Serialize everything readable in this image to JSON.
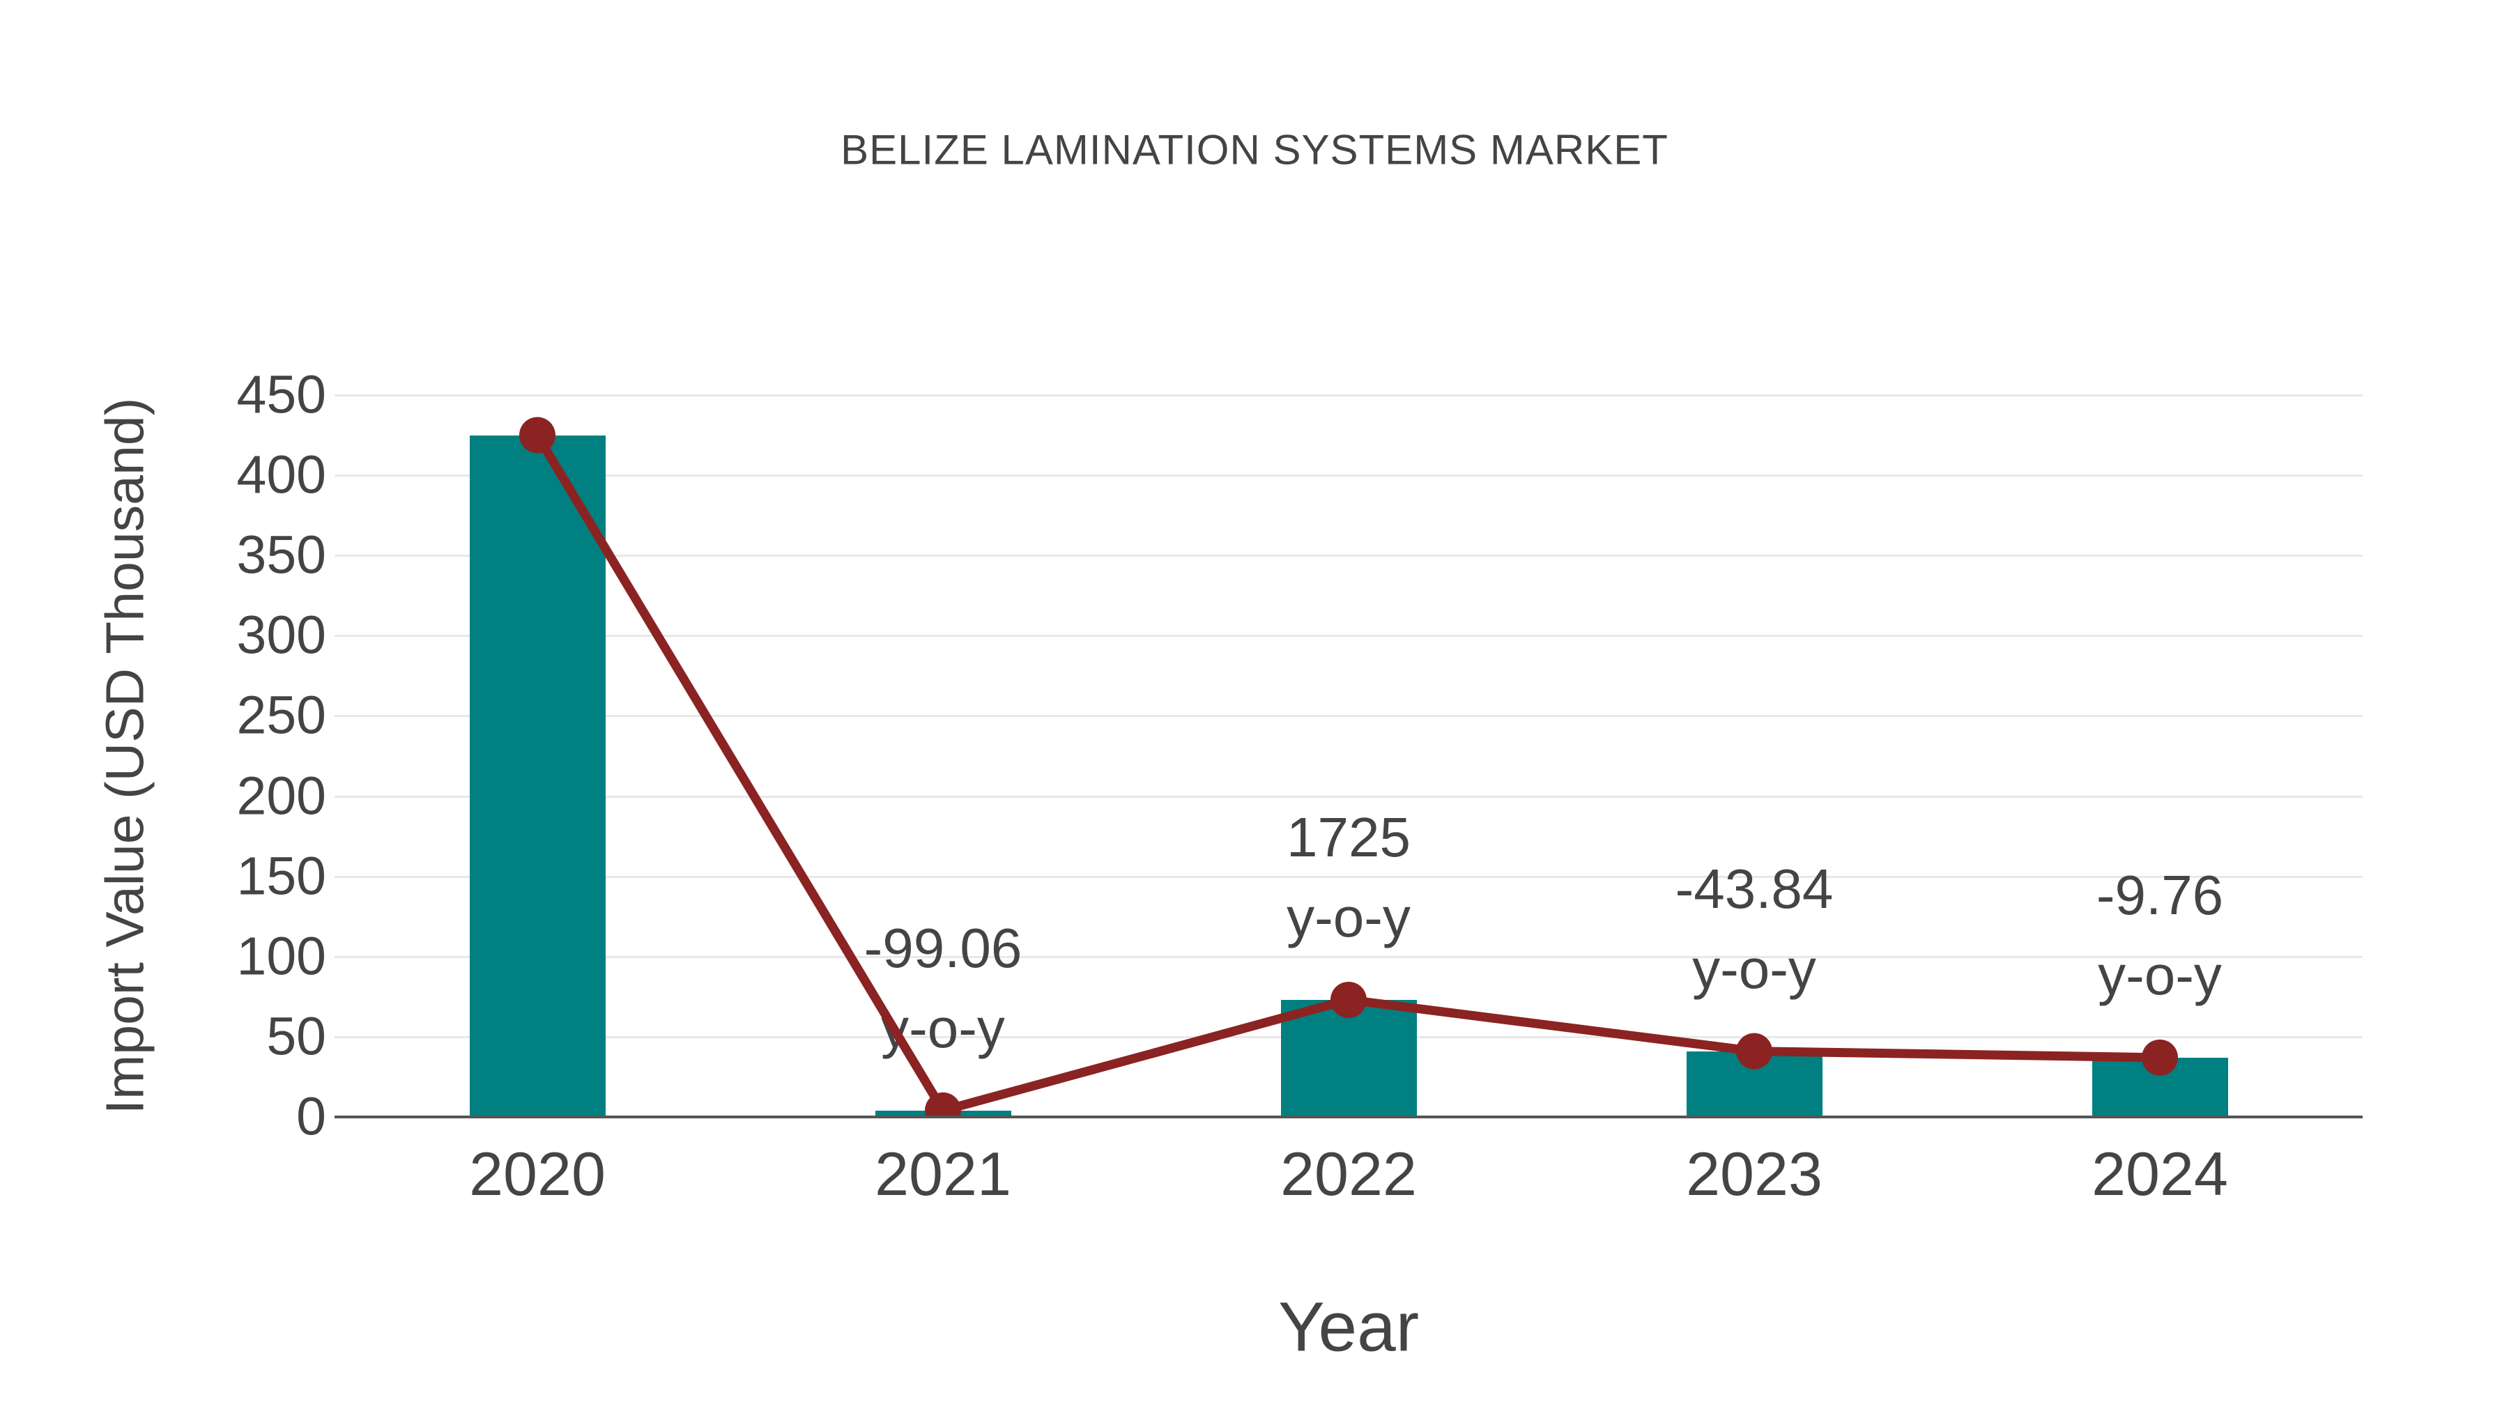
{
  "title": "BELIZE LAMINATION SYSTEMS MARKET",
  "chart_data": {
    "type": "bar",
    "title": "BELIZE LAMINATION SYSTEMS MARKET",
    "categories": [
      "2020",
      "2021",
      "2022",
      "2023",
      "2024"
    ],
    "values": [
      425,
      4,
      73,
      41,
      37
    ],
    "line_overlay": {
      "type": "line",
      "values": [
        425,
        4,
        73,
        41,
        37
      ],
      "markers": true
    },
    "annotations": [
      {
        "category": "2021",
        "line1": "-99.06",
        "line2": "y-o-y"
      },
      {
        "category": "2022",
        "line1": "1725",
        "line2": "y-o-y"
      },
      {
        "category": "2023",
        "line1": "-43.84",
        "line2": "y-o-y"
      },
      {
        "category": "2024",
        "line1": "-9.76",
        "line2": "y-o-y"
      }
    ],
    "xlabel": "Year",
    "ylabel": "Import Value (USD Thousand)",
    "ylim": [
      0,
      450
    ],
    "ytick_step": 50,
    "yticks": [
      0,
      50,
      100,
      150,
      200,
      250,
      300,
      350,
      400,
      450
    ],
    "grid": true,
    "legend_position": "none"
  },
  "colors": {
    "bar": "#008080",
    "line": "#8B2323",
    "marker": "#8B2323",
    "text": "#444444",
    "grid": "#e8e8e8",
    "axis": "#555555",
    "background": "#ffffff"
  }
}
